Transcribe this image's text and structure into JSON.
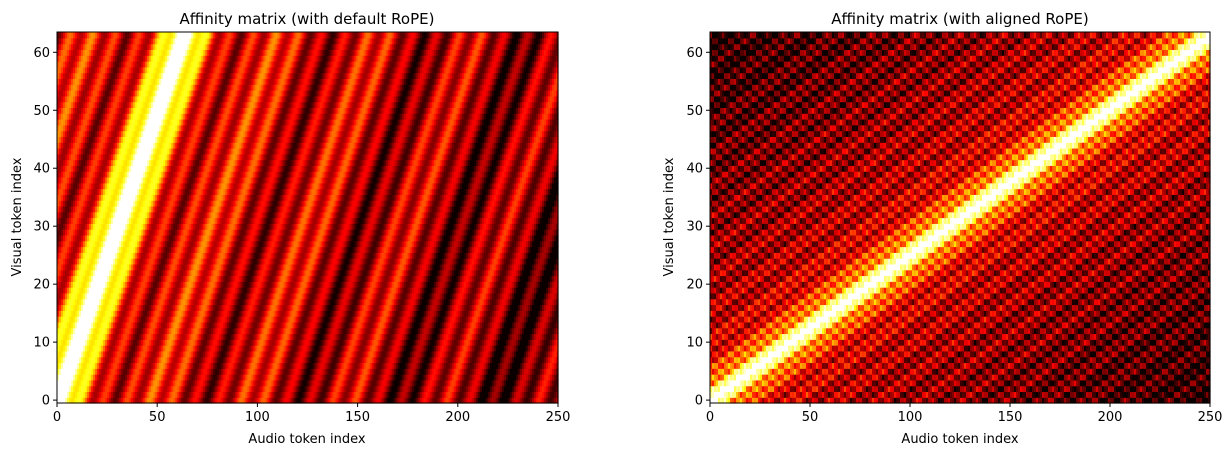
{
  "chart_data": [
    {
      "type": "heatmap",
      "title": "Affinity matrix (with default RoPE)",
      "xlabel": "Audio token index",
      "ylabel": "Visual token index",
      "xlim": [
        0,
        250
      ],
      "ylim": [
        0,
        63
      ],
      "xticks": [
        "0",
        "50",
        "100",
        "150",
        "200",
        "250"
      ],
      "yticks": [
        "0",
        "10",
        "20",
        "30",
        "40",
        "50",
        "60"
      ],
      "grid": false,
      "colormap": "hot",
      "n_audio_tokens": 250,
      "n_visual_tokens": 64,
      "diagonal": {
        "slope_audio_per_visual": 1.0,
        "peak_at_visual_0_audio": 0
      }
    },
    {
      "type": "heatmap",
      "title": "Affinity matrix (with aligned RoPE)",
      "xlabel": "Audio token index",
      "ylabel": "Visual token index",
      "xlim": [
        0,
        250
      ],
      "ylim": [
        0,
        63
      ],
      "xticks": [
        "0",
        "50",
        "100",
        "150",
        "200",
        "250"
      ],
      "yticks": [
        "0",
        "10",
        "20",
        "30",
        "40",
        "50",
        "60"
      ],
      "grid": false,
      "colormap": "hot",
      "n_audio_tokens": 250,
      "n_visual_tokens": 64,
      "diagonal": {
        "slope_audio_per_visual": 3.97,
        "peak_at_visual_0_audio": 0
      }
    }
  ]
}
